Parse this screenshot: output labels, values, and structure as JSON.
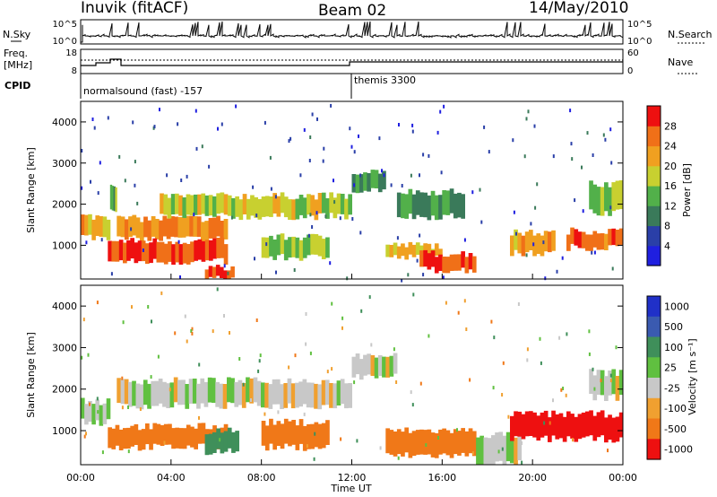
{
  "header": {
    "radar_title": "Inuvik (fitACF)",
    "beam_title": "Beam 02",
    "date_title": "14/May/2010"
  },
  "top_panels": {
    "nsky_label": "N.Sky",
    "nsky_ticks": [
      "10^5",
      "10^0"
    ],
    "nsearch_label": "N.Search",
    "nsearch_ticks": [
      "10^5",
      "10^0"
    ],
    "freq_label_line1": "Freq.",
    "freq_label_line2": "[MHz]",
    "freq_ticks": [
      "18",
      "8"
    ],
    "nave_label": "Nave",
    "nave_ticks": [
      "60",
      "0"
    ],
    "cpid_label": "CPID",
    "cpid_modes": [
      {
        "label": "normalsound (fast) -157",
        "start_hour": 0
      },
      {
        "label": "themis 3300",
        "start_hour": 12
      }
    ]
  },
  "axes": {
    "y_label": "Slant Range [km]",
    "y_ticks": [
      "1000",
      "2000",
      "3000",
      "4000"
    ],
    "x_label": "Time UT",
    "x_ticks": [
      "00:00",
      "04:00",
      "08:00",
      "12:00",
      "16:00",
      "20:00",
      "00:00"
    ]
  },
  "colorbars": {
    "power": {
      "label": "Power [dB]",
      "ticks": [
        "4",
        "8",
        "12",
        "16",
        "20",
        "24",
        "28"
      ],
      "colors": [
        "#1f1fe0",
        "#2a3fa8",
        "#3a7a5a",
        "#52b04a",
        "#c8d030",
        "#f0a020",
        "#f07018",
        "#ee1010"
      ]
    },
    "velocity": {
      "label": "Velocity [m s⁻¹]",
      "ticks": [
        "1000",
        "500",
        "100",
        "25",
        "-25",
        "-100",
        "-500",
        "-1000"
      ],
      "colors": [
        "#2030c8",
        "#3a5ab0",
        "#3f8f5a",
        "#60c040",
        "#c8c8c8",
        "#f0a030",
        "#f07818",
        "#ee1010"
      ]
    }
  },
  "chart_data": {
    "type": "heatmap",
    "x_range_hours": [
      0,
      24
    ],
    "y_range_km": [
      180,
      4500
    ],
    "power_bands": [
      {
        "t0": 0,
        "t1": 1.3,
        "r0": 1200,
        "r1": 1700,
        "power_db": 22
      },
      {
        "t0": 1.3,
        "t1": 1.6,
        "r0": 1900,
        "r1": 2500,
        "power_db": 14
      },
      {
        "t0": 1.6,
        "t1": 6.5,
        "r0": 1150,
        "r1": 1650,
        "power_db": 24
      },
      {
        "t0": 1.2,
        "t1": 6.5,
        "r0": 600,
        "r1": 1100,
        "power_db": 28
      },
      {
        "t0": 3.5,
        "t1": 12,
        "r0": 1700,
        "r1": 2200,
        "power_db": 18
      },
      {
        "t0": 5.5,
        "t1": 6.8,
        "r0": 180,
        "r1": 450,
        "power_db": 28
      },
      {
        "t0": 8,
        "t1": 11,
        "r0": 700,
        "r1": 1200,
        "power_db": 16
      },
      {
        "t0": 12,
        "t1": 13.5,
        "r0": 2350,
        "r1": 2800,
        "power_db": 12
      },
      {
        "t0": 13.5,
        "t1": 16,
        "r0": 700,
        "r1": 1000,
        "power_db": 20
      },
      {
        "t0": 15,
        "t1": 17.5,
        "r0": 400,
        "r1": 800,
        "power_db": 28
      },
      {
        "t0": 14,
        "t1": 17,
        "r0": 1700,
        "r1": 2300,
        "power_db": 12
      },
      {
        "t0": 19,
        "t1": 21,
        "r0": 800,
        "r1": 1300,
        "power_db": 22
      },
      {
        "t0": 21.5,
        "t1": 24,
        "r0": 950,
        "r1": 1350,
        "power_db": 26
      },
      {
        "t0": 22.5,
        "t1": 24,
        "r0": 1800,
        "r1": 2500,
        "power_db": 16
      }
    ],
    "velocity_bands": [
      {
        "t0": 0,
        "t1": 1.3,
        "r0": 1200,
        "r1": 1700,
        "velocity": 25
      },
      {
        "t0": 1.6,
        "t1": 12,
        "r0": 1600,
        "r1": 2200,
        "velocity": 0
      },
      {
        "t0": 1.2,
        "t1": 6.5,
        "r0": 600,
        "r1": 1100,
        "velocity": -300
      },
      {
        "t0": 5.5,
        "t1": 7,
        "r0": 500,
        "r1": 1000,
        "velocity": 300
      },
      {
        "t0": 8,
        "t1": 11,
        "r0": 600,
        "r1": 1200,
        "velocity": -200
      },
      {
        "t0": 12,
        "t1": 14,
        "r0": 2300,
        "r1": 2800,
        "velocity": 0
      },
      {
        "t0": 13.5,
        "t1": 17.5,
        "r0": 400,
        "r1": 1000,
        "velocity": -400
      },
      {
        "t0": 17.5,
        "t1": 19.5,
        "r0": 200,
        "r1": 900,
        "velocity": 0
      },
      {
        "t0": 19,
        "t1": 24,
        "r0": 800,
        "r1": 1400,
        "velocity": -600
      },
      {
        "t0": 22.5,
        "t1": 24,
        "r0": 1800,
        "r1": 2400,
        "velocity": 0
      }
    ]
  }
}
